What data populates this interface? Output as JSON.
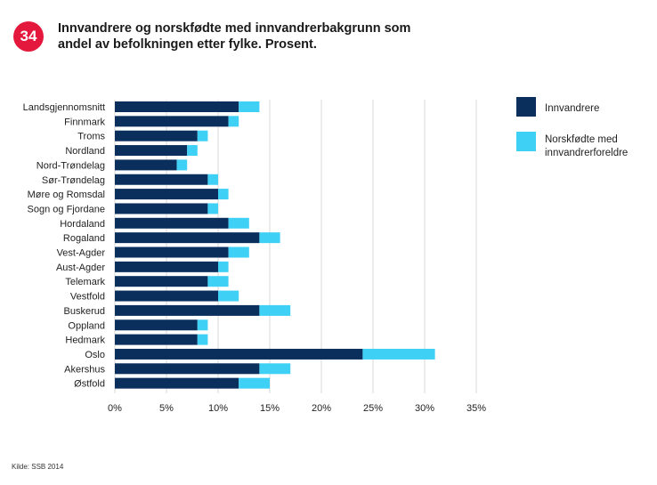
{
  "badge": "34",
  "title": "Innvandrere og norskfødte med innvandrerbakgrunn som andel av befolkningen etter fylke. Prosent.",
  "source": "Kilde: SSB 2014",
  "colors": {
    "innvandrere": "#0a2f5c",
    "norskfodte": "#3fd0f5",
    "grid": "#d9d9d9",
    "badge": "#e3183c"
  },
  "chart_data": {
    "type": "bar",
    "orientation": "horizontal",
    "stacked": true,
    "categories": [
      "Landsgjennomsnitt",
      "Finnmark",
      "Troms",
      "Nordland",
      "Nord-Trøndelag",
      "Sør-Trøndelag",
      "Møre og Romsdal",
      "Sogn og Fjordane",
      "Hordaland",
      "Rogaland",
      "Vest-Agder",
      "Aust-Agder",
      "Telemark",
      "Vestfold",
      "Buskerud",
      "Oppland",
      "Hedmark",
      "Oslo",
      "Akershus",
      "Østfold"
    ],
    "series": [
      {
        "name": "Innvandrere",
        "values": [
          12,
          11,
          8,
          7,
          6,
          9,
          10,
          9,
          11,
          14,
          11,
          10,
          9,
          10,
          14,
          8,
          8,
          24,
          14,
          12
        ]
      },
      {
        "name": "Norskfødte med innvandrerforeldre",
        "values": [
          2,
          1,
          1,
          1,
          1,
          1,
          1,
          1,
          2,
          2,
          2,
          1,
          2,
          2,
          3,
          1,
          1,
          7,
          3,
          3
        ]
      }
    ],
    "xlim": [
      0,
      35
    ],
    "xticks": [
      0,
      5,
      10,
      15,
      20,
      25,
      30,
      35
    ],
    "xtick_labels": [
      "0%",
      "5%",
      "10%",
      "15%",
      "20%",
      "25%",
      "30%",
      "35%"
    ],
    "grid": true,
    "legend": [
      {
        "label": "Innvandrere"
      },
      {
        "label": "Norskfødte med",
        "label2": "innvandrerforeldre"
      }
    ],
    "legend_position": "right"
  }
}
